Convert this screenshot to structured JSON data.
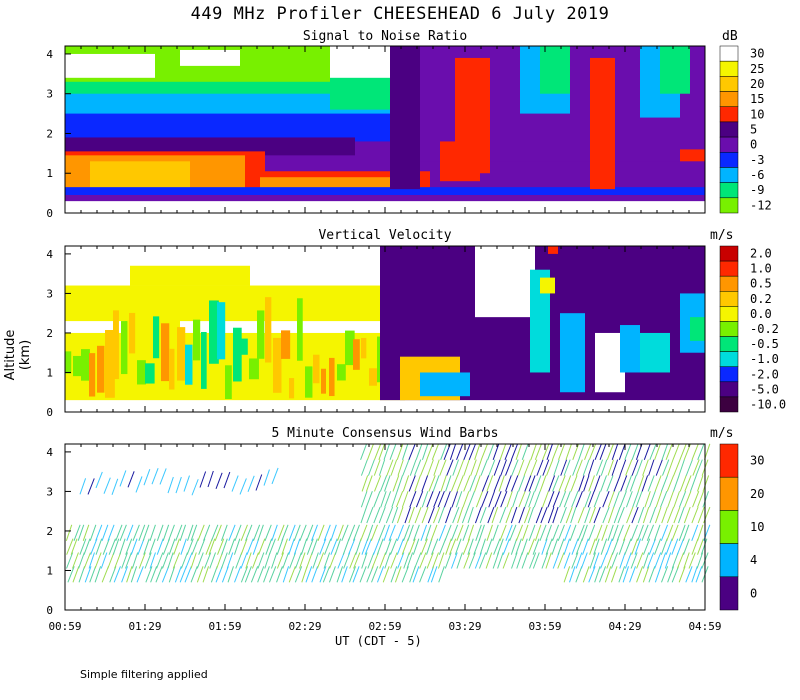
{
  "title": "449 MHz Profiler CHEESEHEAD  6 July 2019",
  "ylabel": "Altitude (km)",
  "xlabel": "UT  (CDT - 5)",
  "footer": "Simple filtering applied",
  "x_ticks": [
    "00:59",
    "01:29",
    "01:59",
    "02:29",
    "02:59",
    "03:29",
    "03:59",
    "04:29",
    "04:59"
  ],
  "y_ticks": [
    "0",
    "1",
    "2",
    "3",
    "4"
  ],
  "colors": {
    "white": "#ffffff",
    "yellow": "#f5f500",
    "gold": "#ffc800",
    "orange": "#ff9600",
    "red": "#ff2800",
    "darkpurple": "#4b0082",
    "purple": "#6a0dad",
    "blue": "#0a28ff",
    "cyan": "#00b4ff",
    "green": "#00e678",
    "lime": "#78f000",
    "darkred": "#c80000",
    "maroon": "#3c0040",
    "ltcyan": "#00dcdc"
  },
  "chart_data": [
    {
      "type": "heatmap",
      "title": "Signal to Noise Ratio",
      "units": "dB",
      "ylim": [
        0,
        4
      ],
      "colorbar": [
        {
          "label": "30",
          "color": "#ffffff"
        },
        {
          "label": "25",
          "color": "#f5f500"
        },
        {
          "label": "20",
          "color": "#ffc800"
        },
        {
          "label": "15",
          "color": "#ff9600"
        },
        {
          "label": "10",
          "color": "#ff2800"
        },
        {
          "label": "5",
          "color": "#4b0082"
        },
        {
          "label": "0",
          "color": "#6a0dad"
        },
        {
          "label": "-3",
          "color": "#0a28ff"
        },
        {
          "label": "-6",
          "color": "#00b4ff"
        },
        {
          "label": "-9",
          "color": "#00e678"
        },
        {
          "label": "-12",
          "color": "#78f000"
        }
      ]
    },
    {
      "type": "heatmap",
      "title": "Vertical Velocity",
      "units": "m/s",
      "ylim": [
        0,
        4
      ],
      "colorbar": [
        {
          "label": "2.0",
          "color": "#c80000"
        },
        {
          "label": "1.0",
          "color": "#ff2800"
        },
        {
          "label": "0.5",
          "color": "#ff9600"
        },
        {
          "label": "0.2",
          "color": "#ffc800"
        },
        {
          "label": "0.0",
          "color": "#f5f500"
        },
        {
          "label": "-0.2",
          "color": "#78f000"
        },
        {
          "label": "-0.5",
          "color": "#00e678"
        },
        {
          "label": "-1.0",
          "color": "#00dcdc"
        },
        {
          "label": "-2.0",
          "color": "#0a28ff"
        },
        {
          "label": "-5.0",
          "color": "#4b0082"
        },
        {
          "label": "-10.0",
          "color": "#3c0040"
        }
      ]
    },
    {
      "type": "scatter",
      "title": "5 Minute Consensus Wind Barbs",
      "units": "m/s",
      "ylim": [
        0,
        4
      ],
      "colorbar": [
        {
          "label": "30",
          "color": "#ff2800"
        },
        {
          "label": "20",
          "color": "#ff9600"
        },
        {
          "label": "10",
          "color": "#78f000"
        },
        {
          "label": "4",
          "color": "#00b4ff"
        },
        {
          "label": "0",
          "color": "#4b0082"
        }
      ]
    }
  ]
}
